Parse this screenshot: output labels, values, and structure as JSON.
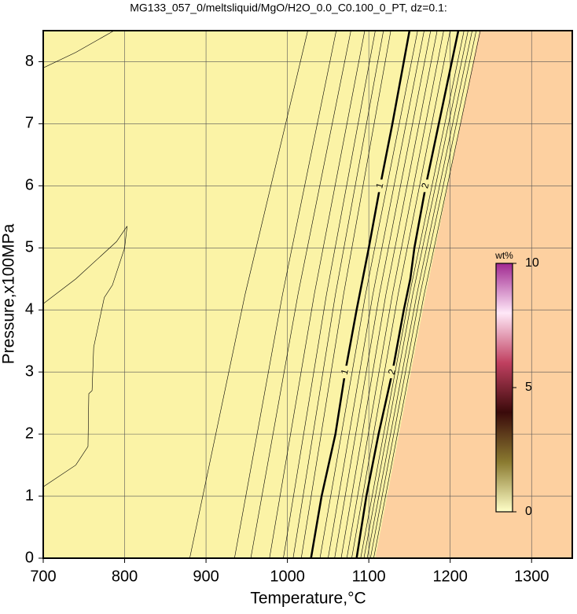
{
  "chart_data": {
    "type": "contour",
    "title": "MG133_057_0/meltsliquid/MgO/H2O_0.0_C0.100_0_PT, dz=0.1:",
    "x_label": "Temperature,°C",
    "y_label": "Pressure,x100MPa",
    "xlim": [
      700,
      1350
    ],
    "ylim": [
      0,
      8.5
    ],
    "xticks": [
      700,
      800,
      900,
      1000,
      1100,
      1200,
      1300
    ],
    "yticks": [
      0,
      1,
      2,
      3,
      4,
      5,
      6,
      7,
      8
    ],
    "grid": true,
    "background": "#fbf3a6",
    "shade": {
      "color": "#fdd0a0",
      "x": [
        1108,
        1170,
        1236
      ],
      "y": [
        0,
        4.25,
        8.5
      ]
    },
    "series": [
      {
        "name": "1",
        "color": "#000000",
        "width": 2.5,
        "x": [
          1029,
          1042,
          1059,
          1071,
          1085,
          1100,
          1114,
          1129,
          1143,
          1150
        ],
        "y": [
          0,
          1,
          2,
          3,
          4,
          5,
          6,
          7,
          8,
          8.5
        ]
      },
      {
        "name": "2",
        "color": "#000000",
        "width": 2.5,
        "x": [
          1085,
          1097,
          1112,
          1129,
          1143,
          1151,
          1156,
          1170,
          1186,
          1202,
          1210
        ],
        "y": [
          0,
          1,
          2,
          3,
          4,
          4.5,
          5,
          6,
          7,
          8,
          8.5
        ]
      },
      {
        "color": "#000000",
        "width": 0.6,
        "x": [
          700,
          740,
          787
        ],
        "y": [
          7.9,
          8.15,
          8.5
        ]
      },
      {
        "color": "#000000",
        "width": 0.6,
        "x": [
          700,
          740,
          755,
          756,
          760,
          762,
          775,
          785,
          800,
          803,
          790,
          740,
          700
        ],
        "y": [
          1.15,
          1.5,
          1.8,
          2.65,
          2.7,
          3.4,
          4.2,
          4.4,
          5.0,
          5.35,
          5.1,
          4.5,
          4.1
        ]
      },
      {
        "color": "#000000",
        "width": 0.6,
        "x": [
          880,
          948,
          1025
        ],
        "y": [
          0,
          4.25,
          8.5
        ]
      },
      {
        "color": "#000000",
        "width": 0.6,
        "x": [
          935,
          994,
          1060
        ],
        "y": [
          0,
          4.25,
          8.5
        ]
      },
      {
        "color": "#000000",
        "width": 0.6,
        "x": [
          955,
          1013,
          1078
        ],
        "y": [
          0,
          4.25,
          8.5
        ]
      },
      {
        "color": "#000000",
        "width": 0.6,
        "x": [
          978,
          1033,
          1095
        ],
        "y": [
          0,
          4.25,
          8.5
        ]
      },
      {
        "color": "#000000",
        "width": 0.6,
        "x": [
          995,
          1048,
          1108
        ],
        "y": [
          0,
          4.25,
          8.5
        ]
      },
      {
        "color": "#000000",
        "width": 0.6,
        "x": [
          1007,
          1059,
          1118
        ],
        "y": [
          0,
          4.25,
          8.5
        ]
      },
      {
        "color": "#000000",
        "width": 0.6,
        "x": [
          1017,
          1069,
          1127
        ],
        "y": [
          0,
          4.25,
          8.5
        ]
      },
      {
        "color": "#000000",
        "width": 0.6,
        "x": [
          1040,
          1096,
          1160
        ],
        "y": [
          0,
          4.25,
          8.5
        ]
      },
      {
        "color": "#000000",
        "width": 0.6,
        "x": [
          1050,
          1105,
          1168
        ],
        "y": [
          0,
          4.25,
          8.5
        ]
      },
      {
        "color": "#000000",
        "width": 0.6,
        "x": [
          1058,
          1113,
          1176
        ],
        "y": [
          0,
          4.25,
          8.5
        ]
      },
      {
        "color": "#000000",
        "width": 0.6,
        "x": [
          1066,
          1121,
          1184
        ],
        "y": [
          0,
          4.25,
          8.5
        ]
      },
      {
        "color": "#000000",
        "width": 0.6,
        "x": [
          1073,
          1129,
          1192
        ],
        "y": [
          0,
          4.25,
          8.5
        ]
      },
      {
        "color": "#000000",
        "width": 0.6,
        "x": [
          1079,
          1136,
          1200
        ],
        "y": [
          0,
          4.25,
          8.5
        ]
      },
      {
        "color": "#000000",
        "width": 0.6,
        "x": [
          1090,
          1150,
          1217
        ],
        "y": [
          0,
          4.25,
          8.5
        ]
      },
      {
        "color": "#000000",
        "width": 0.6,
        "x": [
          1094,
          1154,
          1222
        ],
        "y": [
          0,
          4.25,
          8.5
        ]
      },
      {
        "color": "#000000",
        "width": 0.6,
        "x": [
          1098,
          1159,
          1227
        ],
        "y": [
          0,
          4.25,
          8.5
        ]
      },
      {
        "color": "#000000",
        "width": 0.6,
        "x": [
          1102,
          1163,
          1232
        ],
        "y": [
          0,
          4.25,
          8.5
        ]
      },
      {
        "color": "#000000",
        "width": 0.6,
        "x": [
          1106,
          1168,
          1237
        ],
        "y": [
          0,
          4.25,
          8.5
        ]
      }
    ],
    "colorbar": {
      "label": "wt%",
      "lim": [
        0,
        10
      ],
      "ticks": [
        0,
        5,
        10
      ],
      "colors": [
        "#ffffc8",
        "#8a7a30",
        "#3a0a0a",
        "#c04060",
        "#ffe8f8",
        "#a02890"
      ]
    }
  }
}
